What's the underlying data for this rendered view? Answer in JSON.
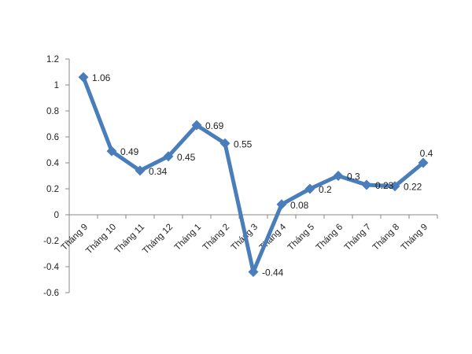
{
  "chart_data": {
    "type": "line",
    "categories": [
      "Tháng 9",
      "Tháng 10",
      "Tháng 11",
      "Tháng 12",
      "Tháng 1",
      "Tháng 2",
      "Tháng 3",
      "Tháng 4",
      "Tháng 5",
      "Tháng 6",
      "Tháng 7",
      "Tháng 8",
      "Tháng 9"
    ],
    "values": [
      1.06,
      0.49,
      0.34,
      0.45,
      0.69,
      0.55,
      -0.44,
      0.08,
      0.2,
      0.3,
      0.23,
      0.22,
      0.4
    ],
    "data_labels": [
      "1.06",
      "0.49",
      "0.34",
      "0.45",
      "0.69",
      "0.55",
      "-0.44",
      "0.08",
      "0.2",
      "0.3",
      "0.23",
      "0.22",
      "0.4"
    ],
    "y_ticks": [
      "1.2",
      "1",
      "0.8",
      "0.6",
      "0.4",
      "0.2",
      "0",
      "-0.2",
      "-0.4",
      "-0.6"
    ],
    "y_tick_values": [
      1.2,
      1,
      0.8,
      0.6,
      0.4,
      0.2,
      0,
      -0.2,
      -0.4,
      -0.6
    ],
    "ylim": [
      -0.6,
      1.2
    ],
    "title": "",
    "xlabel": "",
    "ylabel": "",
    "grid": false,
    "legend": "none",
    "series_color": "#4a7ebb",
    "marker": "diamond"
  }
}
